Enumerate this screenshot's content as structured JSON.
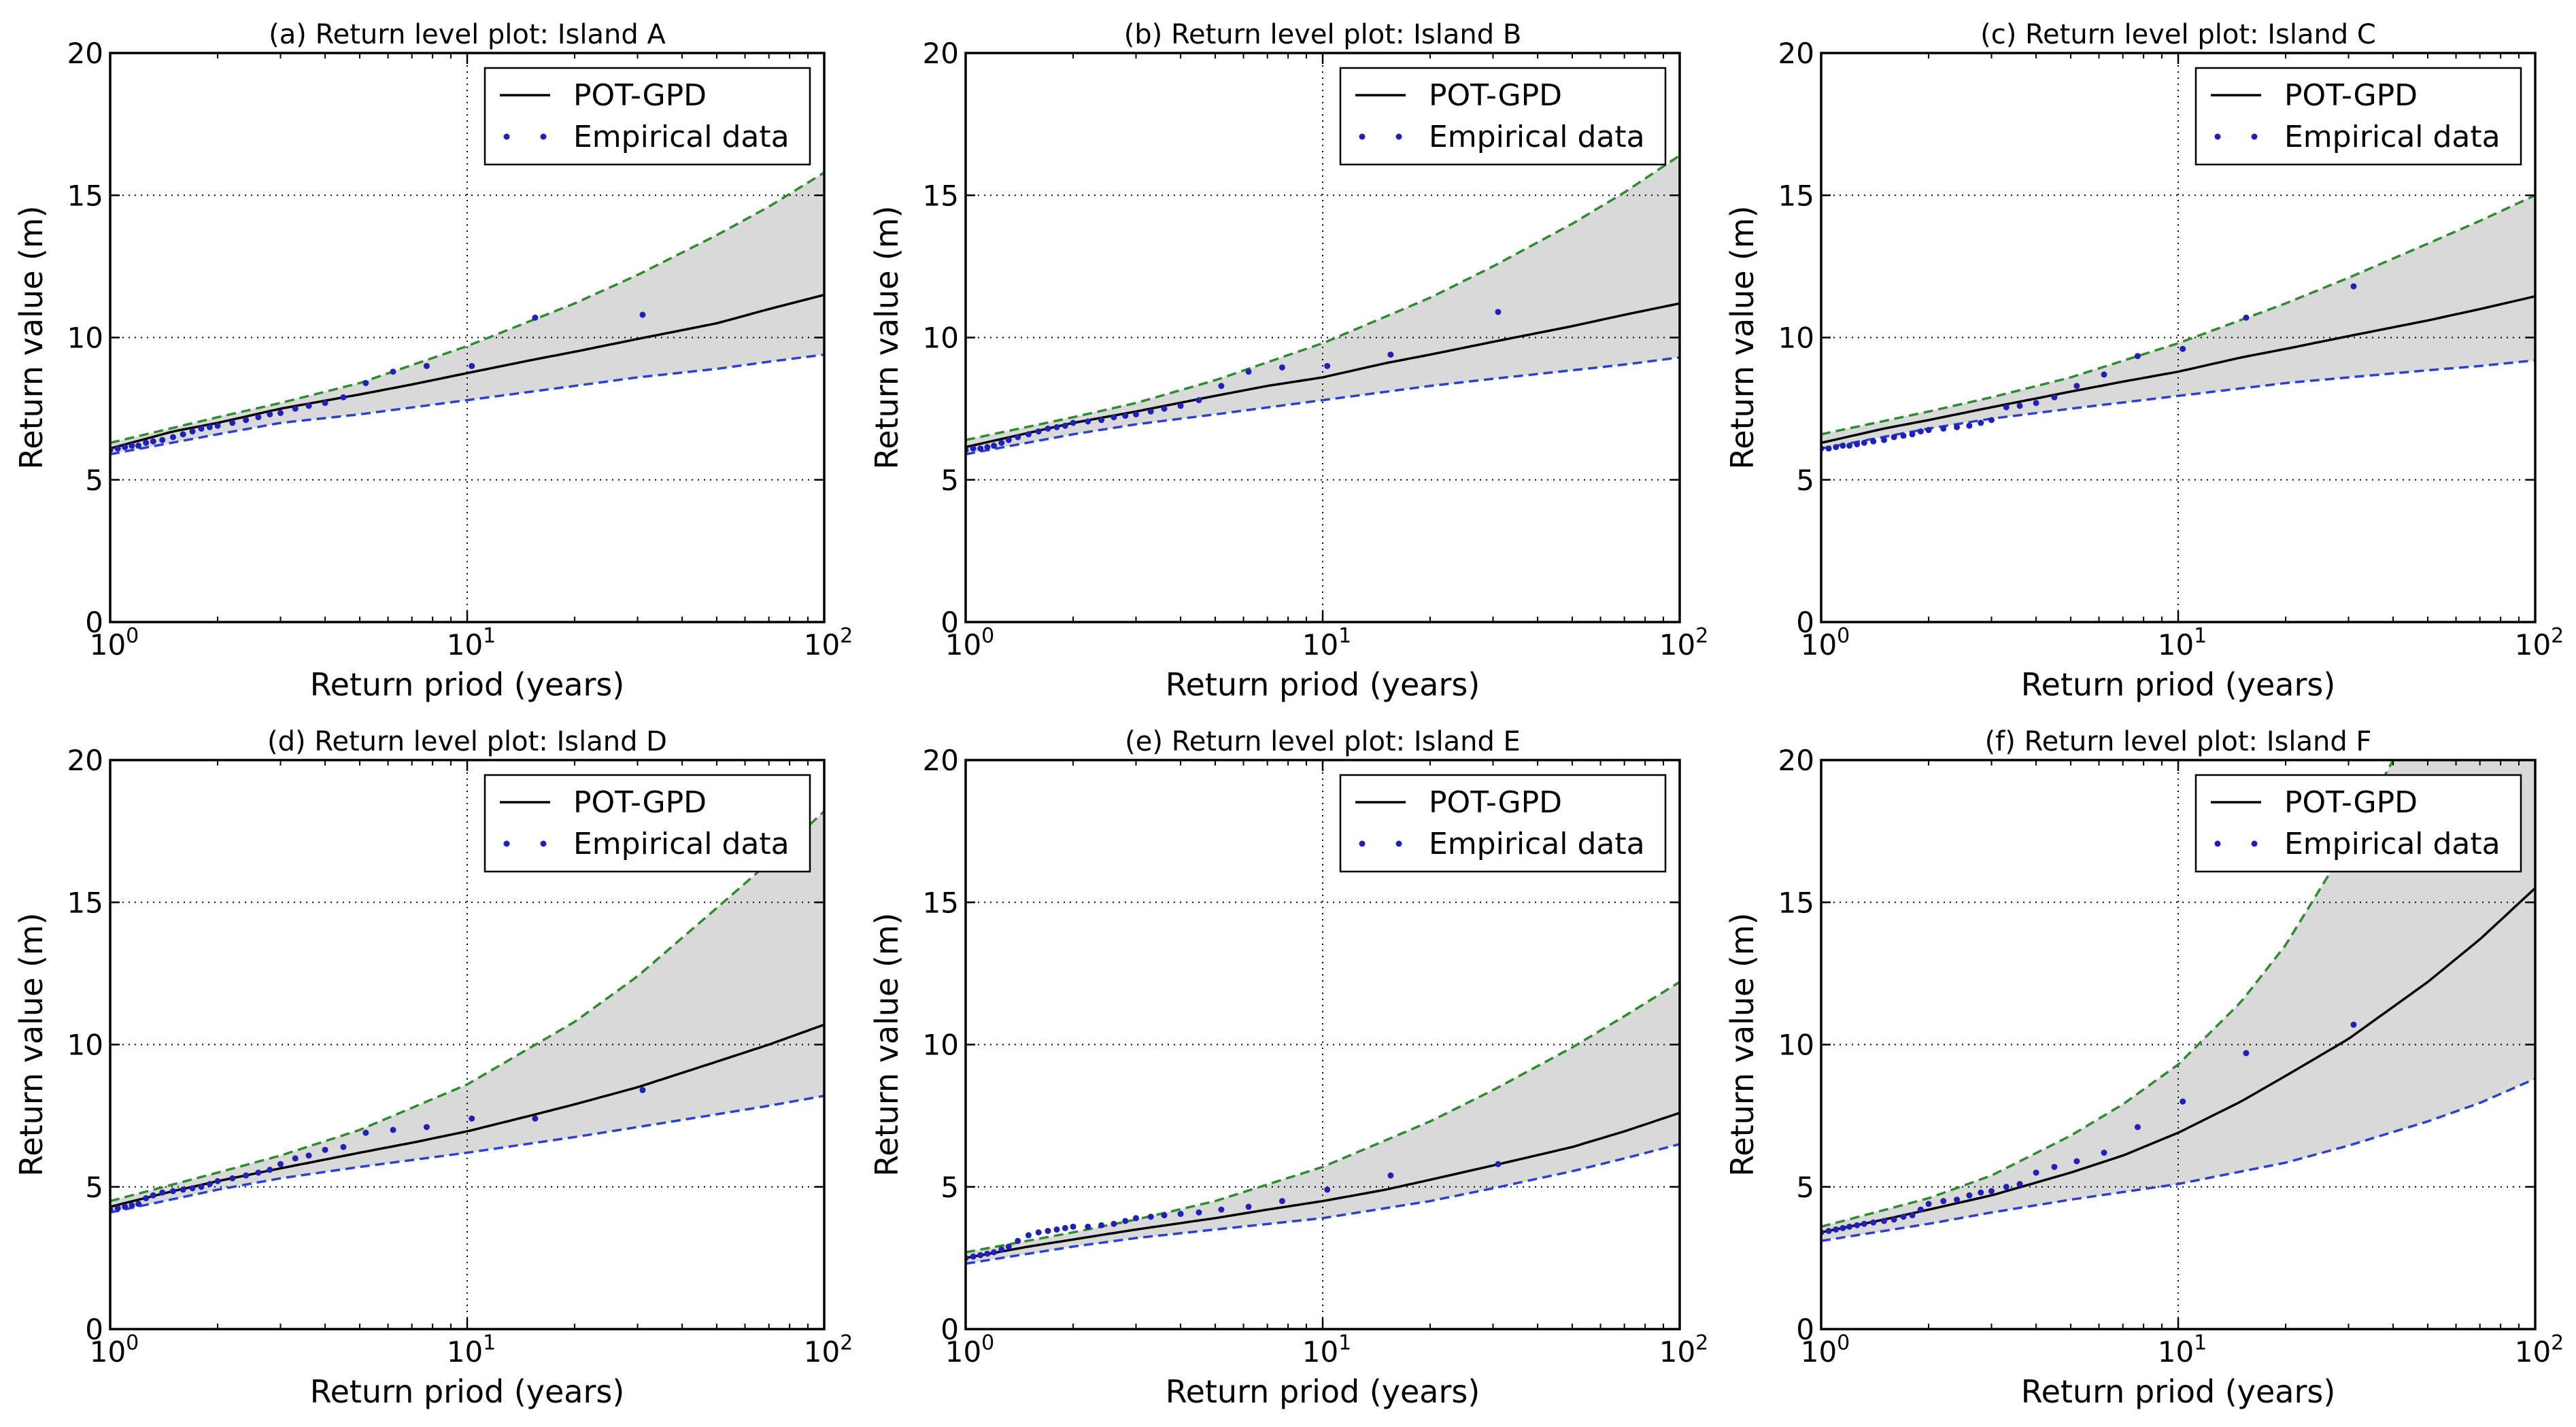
{
  "figure": {
    "colors": {
      "fit": "#000000",
      "upper": "#2e8b2e",
      "lower": "#2b3fd6",
      "band": "#d9d9d9",
      "points": "#2020b8",
      "grid": "#000000"
    }
  },
  "chart_data": [
    {
      "type": "line",
      "title": "(a) Return level plot: Island A",
      "xlabel": "Return priod (years)",
      "ylabel": "Return value (m)",
      "xscale": "log",
      "xlim": [
        1,
        100
      ],
      "ylim": [
        0,
        20
      ],
      "xticks": [
        {
          "base": "10",
          "exp": "0"
        },
        {
          "base": "10",
          "exp": "1"
        },
        {
          "base": "10",
          "exp": "2"
        }
      ],
      "yticks": [
        "0",
        "5",
        "10",
        "15",
        "20"
      ],
      "grid": true,
      "legend_position": "top-right",
      "legend": [
        "POT-GPD",
        "Empirical data"
      ],
      "series": [
        {
          "name": "POT-GPD",
          "x": [
            1,
            1.5,
            2,
            3,
            5,
            7,
            10,
            15,
            20,
            30,
            50,
            70,
            100
          ],
          "y": [
            6.1,
            6.7,
            7.0,
            7.5,
            8.0,
            8.35,
            8.75,
            9.2,
            9.5,
            9.95,
            10.5,
            11.0,
            11.5
          ]
        },
        {
          "name": "Upper bound",
          "x": [
            1,
            2,
            3,
            5,
            10,
            20,
            30,
            50,
            70,
            100
          ],
          "y": [
            6.3,
            7.2,
            7.7,
            8.4,
            9.7,
            11.2,
            12.2,
            13.6,
            14.6,
            15.8
          ]
        },
        {
          "name": "Lower bound",
          "x": [
            1,
            2,
            3,
            5,
            10,
            20,
            30,
            50,
            70,
            100
          ],
          "y": [
            5.9,
            6.6,
            7.0,
            7.3,
            7.8,
            8.3,
            8.6,
            8.9,
            9.15,
            9.4
          ]
        },
        {
          "name": "Empirical data",
          "x": [
            1.0,
            1.05,
            1.1,
            1.15,
            1.2,
            1.26,
            1.32,
            1.4,
            1.5,
            1.6,
            1.7,
            1.8,
            1.9,
            2.0,
            2.2,
            2.4,
            2.6,
            2.8,
            3.0,
            3.3,
            3.6,
            4.0,
            4.5,
            5.2,
            6.2,
            7.7,
            10.3,
            15.5,
            31.0
          ],
          "y": [
            6.05,
            6.1,
            6.15,
            6.2,
            6.2,
            6.3,
            6.35,
            6.4,
            6.5,
            6.6,
            6.7,
            6.8,
            6.85,
            6.9,
            7.0,
            7.1,
            7.2,
            7.3,
            7.35,
            7.5,
            7.6,
            7.7,
            7.9,
            8.4,
            8.8,
            9.0,
            9.0,
            10.7,
            10.8
          ]
        }
      ]
    },
    {
      "type": "line",
      "title": "(b) Return level plot: Island B",
      "xlabel": "Return priod (years)",
      "ylabel": "Return value (m)",
      "xscale": "log",
      "xlim": [
        1,
        100
      ],
      "ylim": [
        0,
        20
      ],
      "xticks": [
        {
          "base": "10",
          "exp": "0"
        },
        {
          "base": "10",
          "exp": "1"
        },
        {
          "base": "10",
          "exp": "2"
        }
      ],
      "yticks": [
        "0",
        "5",
        "10",
        "15",
        "20"
      ],
      "grid": true,
      "legend_position": "top-right",
      "legend": [
        "POT-GPD",
        "Empirical data"
      ],
      "series": [
        {
          "name": "POT-GPD",
          "x": [
            1,
            1.5,
            2,
            3,
            5,
            7,
            10,
            15,
            20,
            30,
            50,
            70,
            100
          ],
          "y": [
            6.15,
            6.65,
            7.0,
            7.4,
            7.95,
            8.3,
            8.6,
            9.1,
            9.4,
            9.85,
            10.4,
            10.8,
            11.2
          ]
        },
        {
          "name": "Upper bound",
          "x": [
            1,
            2,
            3,
            5,
            10,
            20,
            30,
            50,
            70,
            100
          ],
          "y": [
            6.4,
            7.2,
            7.7,
            8.5,
            9.8,
            11.4,
            12.5,
            14.0,
            15.1,
            16.4
          ]
        },
        {
          "name": "Lower bound",
          "x": [
            1,
            2,
            3,
            5,
            10,
            20,
            30,
            50,
            70,
            100
          ],
          "y": [
            5.9,
            6.6,
            6.95,
            7.3,
            7.8,
            8.3,
            8.55,
            8.85,
            9.05,
            9.3
          ]
        },
        {
          "name": "Empirical data",
          "x": [
            1.0,
            1.05,
            1.1,
            1.15,
            1.2,
            1.26,
            1.32,
            1.4,
            1.5,
            1.6,
            1.7,
            1.8,
            1.9,
            2.0,
            2.2,
            2.4,
            2.6,
            2.8,
            3.0,
            3.3,
            3.6,
            4.0,
            4.5,
            5.2,
            6.2,
            7.7,
            10.3,
            15.5,
            31.0
          ],
          "y": [
            6.05,
            6.1,
            6.1,
            6.15,
            6.2,
            6.3,
            6.4,
            6.5,
            6.6,
            6.7,
            6.8,
            6.85,
            6.9,
            7.0,
            7.05,
            7.1,
            7.2,
            7.25,
            7.3,
            7.4,
            7.5,
            7.6,
            7.8,
            8.3,
            8.8,
            8.95,
            9.0,
            9.4,
            10.9
          ]
        }
      ]
    },
    {
      "type": "line",
      "title": "(c) Return level plot: Island C",
      "xlabel": "Return priod (years)",
      "ylabel": "Return value (m)",
      "xscale": "log",
      "xlim": [
        1,
        100
      ],
      "ylim": [
        0,
        20
      ],
      "xticks": [
        {
          "base": "10",
          "exp": "0"
        },
        {
          "base": "10",
          "exp": "1"
        },
        {
          "base": "10",
          "exp": "2"
        }
      ],
      "yticks": [
        "0",
        "5",
        "10",
        "15",
        "20"
      ],
      "grid": true,
      "legend_position": "top-right",
      "legend": [
        "POT-GPD",
        "Empirical data"
      ],
      "series": [
        {
          "name": "POT-GPD",
          "x": [
            1,
            1.5,
            2,
            3,
            5,
            7,
            10,
            15,
            20,
            30,
            50,
            70,
            100
          ],
          "y": [
            6.3,
            6.8,
            7.1,
            7.55,
            8.1,
            8.45,
            8.8,
            9.3,
            9.6,
            10.05,
            10.6,
            11.0,
            11.45
          ]
        },
        {
          "name": "Upper bound",
          "x": [
            1,
            2,
            3,
            5,
            10,
            20,
            30,
            50,
            70,
            100
          ],
          "y": [
            6.6,
            7.4,
            7.9,
            8.6,
            9.8,
            11.2,
            12.1,
            13.3,
            14.1,
            15.0
          ]
        },
        {
          "name": "Lower bound",
          "x": [
            1,
            2,
            3,
            5,
            10,
            20,
            30,
            50,
            70,
            100
          ],
          "y": [
            6.1,
            6.8,
            7.15,
            7.5,
            7.95,
            8.4,
            8.6,
            8.85,
            9.0,
            9.2
          ]
        },
        {
          "name": "Empirical data",
          "x": [
            1.0,
            1.05,
            1.1,
            1.15,
            1.2,
            1.26,
            1.32,
            1.4,
            1.5,
            1.6,
            1.7,
            1.8,
            1.9,
            2.0,
            2.2,
            2.4,
            2.6,
            2.8,
            3.0,
            3.3,
            3.6,
            4.0,
            4.5,
            5.2,
            6.2,
            7.7,
            10.3,
            15.5,
            31.0
          ],
          "y": [
            6.1,
            6.1,
            6.15,
            6.2,
            6.2,
            6.25,
            6.3,
            6.35,
            6.4,
            6.5,
            6.55,
            6.6,
            6.7,
            6.75,
            6.8,
            6.85,
            6.9,
            7.0,
            7.1,
            7.55,
            7.6,
            7.7,
            7.9,
            8.3,
            8.7,
            9.35,
            9.6,
            10.7,
            11.8
          ]
        }
      ]
    },
    {
      "type": "line",
      "title": "(d) Return level plot: Island D",
      "xlabel": "Return priod (years)",
      "ylabel": "Return value (m)",
      "xscale": "log",
      "xlim": [
        1,
        100
      ],
      "ylim": [
        0,
        20
      ],
      "xticks": [
        {
          "base": "10",
          "exp": "0"
        },
        {
          "base": "10",
          "exp": "1"
        },
        {
          "base": "10",
          "exp": "2"
        }
      ],
      "yticks": [
        "0",
        "5",
        "10",
        "15",
        "20"
      ],
      "grid": true,
      "legend_position": "top-right",
      "legend": [
        "POT-GPD",
        "Empirical data"
      ],
      "series": [
        {
          "name": "POT-GPD",
          "x": [
            1,
            1.5,
            2,
            3,
            5,
            7,
            10,
            15,
            20,
            30,
            50,
            70,
            100
          ],
          "y": [
            4.3,
            4.85,
            5.2,
            5.65,
            6.2,
            6.55,
            6.95,
            7.5,
            7.9,
            8.5,
            9.4,
            10.0,
            10.7
          ]
        },
        {
          "name": "Upper bound",
          "x": [
            1,
            2,
            3,
            5,
            10,
            20,
            30,
            50,
            70,
            100
          ],
          "y": [
            4.5,
            5.5,
            6.1,
            7.0,
            8.6,
            10.8,
            12.4,
            14.8,
            16.4,
            18.2
          ]
        },
        {
          "name": "Lower bound",
          "x": [
            1,
            2,
            3,
            5,
            10,
            20,
            30,
            50,
            70,
            100
          ],
          "y": [
            4.1,
            4.9,
            5.3,
            5.7,
            6.2,
            6.75,
            7.1,
            7.55,
            7.85,
            8.2
          ]
        },
        {
          "name": "Empirical data",
          "x": [
            1.0,
            1.05,
            1.1,
            1.15,
            1.2,
            1.26,
            1.32,
            1.4,
            1.5,
            1.6,
            1.7,
            1.8,
            1.9,
            2.0,
            2.2,
            2.4,
            2.6,
            2.8,
            3.0,
            3.3,
            3.6,
            4.0,
            4.5,
            5.2,
            6.2,
            7.7,
            10.3,
            15.5,
            31.0
          ],
          "y": [
            4.2,
            4.25,
            4.3,
            4.35,
            4.4,
            4.6,
            4.7,
            4.8,
            4.85,
            4.9,
            4.95,
            5.0,
            5.1,
            5.2,
            5.3,
            5.4,
            5.5,
            5.6,
            5.8,
            6.0,
            6.1,
            6.3,
            6.4,
            6.9,
            7.0,
            7.1,
            7.4,
            7.4,
            8.4
          ]
        }
      ]
    },
    {
      "type": "line",
      "title": "(e) Return level plot: Island E",
      "xlabel": "Return priod (years)",
      "ylabel": "Return value (m)",
      "xscale": "log",
      "xlim": [
        1,
        100
      ],
      "ylim": [
        0,
        20
      ],
      "xticks": [
        {
          "base": "10",
          "exp": "0"
        },
        {
          "base": "10",
          "exp": "1"
        },
        {
          "base": "10",
          "exp": "2"
        }
      ],
      "yticks": [
        "0",
        "5",
        "10",
        "15",
        "20"
      ],
      "grid": true,
      "legend_position": "top-right",
      "legend": [
        "POT-GPD",
        "Empirical data"
      ],
      "series": [
        {
          "name": "POT-GPD",
          "x": [
            1,
            1.5,
            2,
            3,
            5,
            7,
            10,
            15,
            20,
            30,
            50,
            70,
            100
          ],
          "y": [
            2.5,
            2.9,
            3.15,
            3.5,
            3.9,
            4.2,
            4.5,
            4.9,
            5.25,
            5.75,
            6.4,
            6.95,
            7.6
          ]
        },
        {
          "name": "Upper bound",
          "x": [
            1,
            2,
            3,
            5,
            10,
            20,
            30,
            50,
            70,
            100
          ],
          "y": [
            2.7,
            3.4,
            3.85,
            4.5,
            5.7,
            7.3,
            8.4,
            9.9,
            11.0,
            12.2
          ]
        },
        {
          "name": "Lower bound",
          "x": [
            1,
            2,
            3,
            5,
            10,
            20,
            30,
            50,
            70,
            100
          ],
          "y": [
            2.3,
            2.9,
            3.2,
            3.5,
            3.9,
            4.5,
            4.95,
            5.55,
            6.0,
            6.5
          ]
        },
        {
          "name": "Empirical data",
          "x": [
            1.0,
            1.05,
            1.1,
            1.15,
            1.2,
            1.26,
            1.32,
            1.4,
            1.5,
            1.6,
            1.7,
            1.8,
            1.9,
            2.0,
            2.2,
            2.4,
            2.6,
            2.8,
            3.0,
            3.3,
            3.6,
            4.0,
            4.5,
            5.2,
            6.2,
            7.7,
            10.3,
            15.5,
            31.0
          ],
          "y": [
            2.5,
            2.55,
            2.6,
            2.65,
            2.7,
            2.8,
            2.9,
            3.1,
            3.3,
            3.4,
            3.45,
            3.5,
            3.55,
            3.6,
            3.6,
            3.65,
            3.7,
            3.8,
            3.9,
            3.95,
            4.0,
            4.05,
            4.1,
            4.2,
            4.3,
            4.5,
            4.9,
            5.4,
            5.8
          ]
        }
      ]
    },
    {
      "type": "line",
      "title": "(f) Return level plot: Island F",
      "xlabel": "Return priod (years)",
      "ylabel": "Return value (m)",
      "xscale": "log",
      "xlim": [
        1,
        100
      ],
      "ylim": [
        0,
        20
      ],
      "xticks": [
        {
          "base": "10",
          "exp": "0"
        },
        {
          "base": "10",
          "exp": "1"
        },
        {
          "base": "10",
          "exp": "2"
        }
      ],
      "yticks": [
        "0",
        "5",
        "10",
        "15",
        "20"
      ],
      "grid": true,
      "legend_position": "top-right",
      "legend": [
        "POT-GPD",
        "Empirical data"
      ],
      "series": [
        {
          "name": "POT-GPD",
          "x": [
            1,
            1.5,
            2,
            3,
            5,
            7,
            10,
            15,
            20,
            30,
            50,
            70,
            100
          ],
          "y": [
            3.4,
            3.85,
            4.2,
            4.7,
            5.5,
            6.1,
            6.9,
            8.0,
            8.9,
            10.2,
            12.2,
            13.7,
            15.5
          ]
        },
        {
          "name": "Upper bound",
          "x": [
            1,
            2,
            3,
            5,
            7,
            10,
            15,
            20,
            30,
            40
          ],
          "y": [
            3.6,
            4.6,
            5.4,
            6.8,
            7.9,
            9.3,
            11.5,
            13.5,
            17.1,
            20.0
          ]
        },
        {
          "name": "Lower bound",
          "x": [
            1,
            2,
            3,
            5,
            10,
            20,
            30,
            50,
            70,
            100
          ],
          "y": [
            3.1,
            3.7,
            4.1,
            4.55,
            5.1,
            5.85,
            6.45,
            7.3,
            7.95,
            8.8
          ]
        },
        {
          "name": "Empirical data",
          "x": [
            1.0,
            1.05,
            1.1,
            1.15,
            1.2,
            1.26,
            1.32,
            1.4,
            1.5,
            1.6,
            1.7,
            1.8,
            1.9,
            2.0,
            2.2,
            2.4,
            2.6,
            2.8,
            3.0,
            3.3,
            3.6,
            4.0,
            4.5,
            5.2,
            6.2,
            7.7,
            10.3,
            15.5,
            31.0
          ],
          "y": [
            3.4,
            3.45,
            3.5,
            3.55,
            3.6,
            3.65,
            3.7,
            3.75,
            3.8,
            3.85,
            3.95,
            4.0,
            4.2,
            4.4,
            4.5,
            4.55,
            4.7,
            4.8,
            4.85,
            5.0,
            5.1,
            5.5,
            5.7,
            5.9,
            6.2,
            7.1,
            8.0,
            9.7,
            10.7
          ]
        }
      ]
    }
  ]
}
